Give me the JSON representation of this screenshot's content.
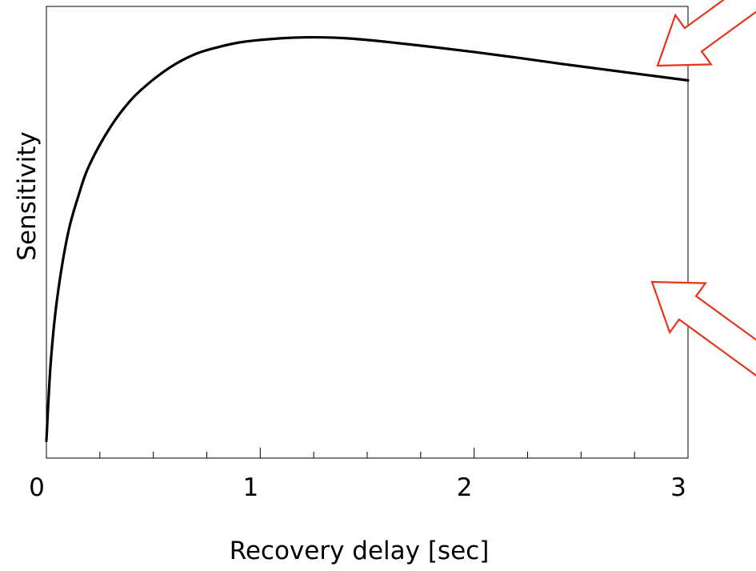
{
  "chart_data": {
    "type": "line",
    "title": "",
    "xlabel": "Recovery delay [sec]",
    "ylabel": "Sensitivity",
    "xlim": [
      0,
      3
    ],
    "ylim": [
      0,
      1.05
    ],
    "grid": false,
    "y_tick_labels_shown": false,
    "x_major_ticks": [
      0,
      1,
      2,
      3
    ],
    "x_tick_labels": [
      "0",
      "1",
      "2",
      "3"
    ],
    "x_minor_tick_step": 0.25,
    "series": [
      {
        "color": "#000000",
        "x": [
          0,
          0.02,
          0.05,
          0.1,
          0.15,
          0.2,
          0.3,
          0.4,
          0.5,
          0.6,
          0.7,
          0.8,
          0.9,
          1.0,
          1.1,
          1.2,
          1.3,
          1.4,
          1.5,
          1.6,
          1.8,
          2.0,
          2.2,
          2.4,
          2.6,
          2.8,
          3.0
        ],
        "y": [
          0.04,
          0.22,
          0.37,
          0.52,
          0.61,
          0.68,
          0.77,
          0.835,
          0.88,
          0.915,
          0.94,
          0.955,
          0.966,
          0.972,
          0.976,
          0.978,
          0.978,
          0.976,
          0.972,
          0.967,
          0.956,
          0.944,
          0.931,
          0.917,
          0.904,
          0.891,
          0.878
        ]
      }
    ]
  },
  "annotations": {
    "arrows": [
      {
        "name": "upper-arrow",
        "direction": "down-left",
        "color": "#e8341c"
      },
      {
        "name": "lower-arrow",
        "direction": "up-left",
        "color": "#e8341c"
      }
    ]
  }
}
